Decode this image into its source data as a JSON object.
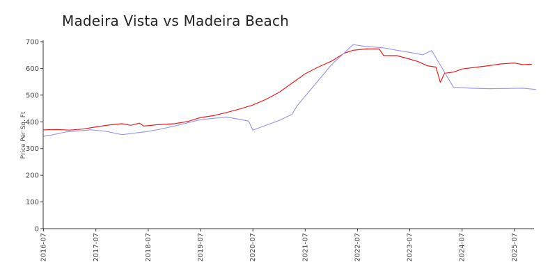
{
  "chart_data": {
    "type": "line",
    "title": "Madeira Vista vs Madeira Beach",
    "xlabel": "",
    "ylabel": "Price Per Sq. Ft",
    "ylim": [
      0,
      700
    ],
    "xlim": [
      "2016-07",
      "2025-11"
    ],
    "yticks": [
      0,
      100,
      200,
      300,
      400,
      500,
      600,
      700
    ],
    "xticks": [
      "2016-07",
      "2017-07",
      "2018-07",
      "2019-07",
      "2020-07",
      "2021-07",
      "2022-07",
      "2023-07",
      "2024-07",
      "2025-07"
    ],
    "grid": false,
    "legend": "none",
    "series": [
      {
        "color": "#ee1c1c",
        "points": [
          [
            "2016-07",
            370
          ],
          [
            "2016-10",
            371
          ],
          [
            "2017-01",
            369
          ],
          [
            "2017-04",
            373
          ],
          [
            "2017-07",
            381
          ],
          [
            "2017-10",
            388
          ],
          [
            "2018-01",
            393
          ],
          [
            "2018-03",
            387
          ],
          [
            "2018-05",
            395
          ],
          [
            "2018-06",
            384
          ],
          [
            "2018-09",
            389
          ],
          [
            "2019-01",
            393
          ],
          [
            "2019-04",
            401
          ],
          [
            "2019-07",
            416
          ],
          [
            "2019-10",
            423
          ],
          [
            "2020-01",
            435
          ],
          [
            "2020-04",
            448
          ],
          [
            "2020-07",
            463
          ],
          [
            "2020-10",
            484
          ],
          [
            "2021-01",
            510
          ],
          [
            "2021-04",
            545
          ],
          [
            "2021-07",
            580
          ],
          [
            "2021-10",
            605
          ],
          [
            "2022-01",
            627
          ],
          [
            "2022-04",
            657
          ],
          [
            "2022-06",
            668
          ],
          [
            "2022-09",
            673
          ],
          [
            "2022-12",
            673
          ],
          [
            "2023-01",
            648
          ],
          [
            "2023-04",
            648
          ],
          [
            "2023-07",
            635
          ],
          [
            "2023-09",
            625
          ],
          [
            "2023-11",
            610
          ],
          [
            "2024-01",
            605
          ],
          [
            "2024-02",
            548
          ],
          [
            "2024-03",
            582
          ],
          [
            "2024-05",
            586
          ],
          [
            "2024-07",
            598
          ],
          [
            "2024-10",
            604
          ],
          [
            "2025-01",
            610
          ],
          [
            "2025-04",
            617
          ],
          [
            "2025-07",
            620
          ],
          [
            "2025-09",
            614
          ],
          [
            "2025-11",
            616
          ]
        ]
      },
      {
        "color": "#9a9ae8",
        "points": [
          [
            "2016-07",
            346
          ],
          [
            "2016-09",
            351
          ],
          [
            "2016-12",
            362
          ],
          [
            "2017-03",
            366
          ],
          [
            "2017-06",
            370
          ],
          [
            "2017-09",
            365
          ],
          [
            "2018-01",
            352
          ],
          [
            "2018-06",
            362
          ],
          [
            "2018-09",
            370
          ],
          [
            "2019-01",
            384
          ],
          [
            "2019-07",
            408
          ],
          [
            "2020-01",
            418
          ],
          [
            "2020-06",
            403
          ],
          [
            "2020-07",
            369
          ],
          [
            "2021-01",
            405
          ],
          [
            "2021-04",
            428
          ],
          [
            "2021-05",
            457
          ],
          [
            "2022-01",
            613
          ],
          [
            "2022-06",
            689
          ],
          [
            "2022-09",
            682
          ],
          [
            "2023-01",
            677
          ],
          [
            "2023-04",
            668
          ],
          [
            "2023-07",
            660
          ],
          [
            "2023-10",
            651
          ],
          [
            "2023-12",
            667
          ],
          [
            "2024-05",
            530
          ],
          [
            "2024-09",
            526
          ],
          [
            "2025-01",
            524
          ],
          [
            "2025-05",
            525
          ],
          [
            "2025-09",
            526
          ],
          [
            "2025-12",
            521
          ]
        ]
      }
    ]
  }
}
